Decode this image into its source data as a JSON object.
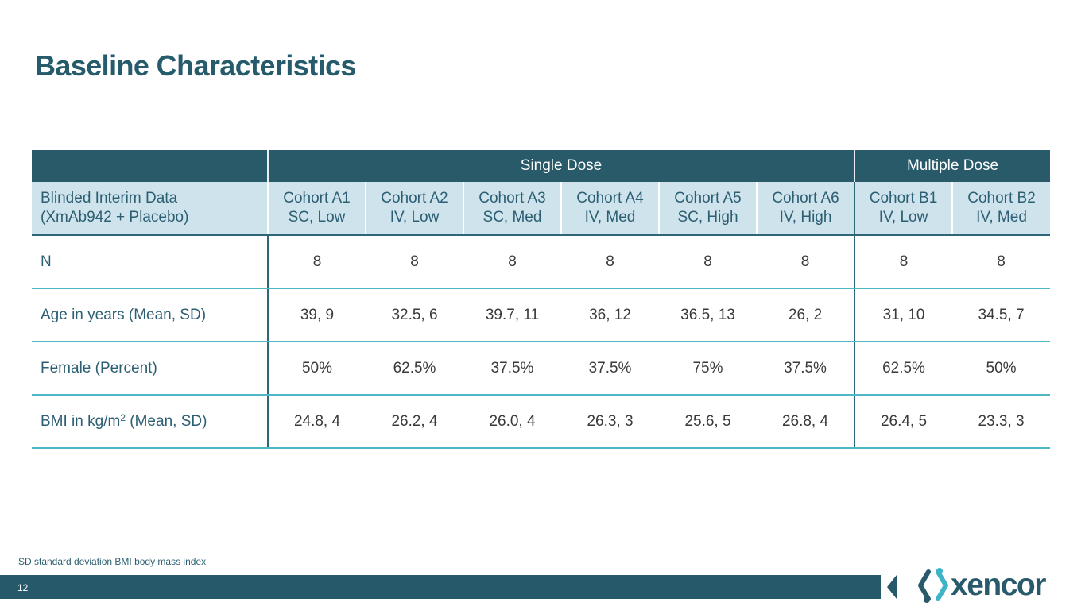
{
  "title": "Baseline Characteristics",
  "table": {
    "group_headers": {
      "single": "Single Dose",
      "multiple": "Multiple Dose"
    },
    "corner_label_line1": "Blinded Interim Data",
    "corner_label_line2": "(XmAb942 + Placebo)",
    "columns": [
      {
        "name": "Cohort A1",
        "detail": "SC, Low"
      },
      {
        "name": "Cohort A2",
        "detail": "IV, Low"
      },
      {
        "name": "Cohort A3",
        "detail": "SC, Med"
      },
      {
        "name": "Cohort A4",
        "detail": "IV, Med"
      },
      {
        "name": "Cohort A5",
        "detail": "SC, High"
      },
      {
        "name": "Cohort A6",
        "detail": "IV, High"
      },
      {
        "name": "Cohort B1",
        "detail": "IV, Low"
      },
      {
        "name": "Cohort B2",
        "detail": "IV, Med"
      }
    ],
    "rows": [
      {
        "label": "N",
        "values": [
          "8",
          "8",
          "8",
          "8",
          "8",
          "8",
          "8",
          "8"
        ]
      },
      {
        "label": "Age in years (Mean, SD)",
        "values": [
          "39, 9",
          "32.5, 6",
          "39.7, 11",
          "36, 12",
          "36.5, 13",
          "26, 2",
          "31, 10",
          "34.5, 7"
        ]
      },
      {
        "label": "Female (Percent)",
        "values": [
          "50%",
          "62.5%",
          "37.5%",
          "37.5%",
          "75%",
          "37.5%",
          "62.5%",
          "50%"
        ]
      },
      {
        "label_prefix": "BMI in kg/m",
        "label_sup": "2",
        "label_suffix": " (Mean, SD)",
        "values": [
          "24.8, 4",
          "26.2, 4",
          "26.0, 4",
          "26.3, 3",
          "25.6, 5",
          "26.8, 4",
          "26.4, 5",
          "23.3, 3"
        ]
      }
    ]
  },
  "footnote": "SD standard deviation  BMI body mass index",
  "page_number": "12",
  "logo": {
    "text": "xencor",
    "icon": "xencor-mark-icon",
    "color": "#285a6b"
  },
  "colors": {
    "title": "#265b6c",
    "header_dark": "#285a6a",
    "header_light": "#cfe3ec",
    "row_border": "#4fb6c6",
    "footer_bar": "#265a6b"
  }
}
